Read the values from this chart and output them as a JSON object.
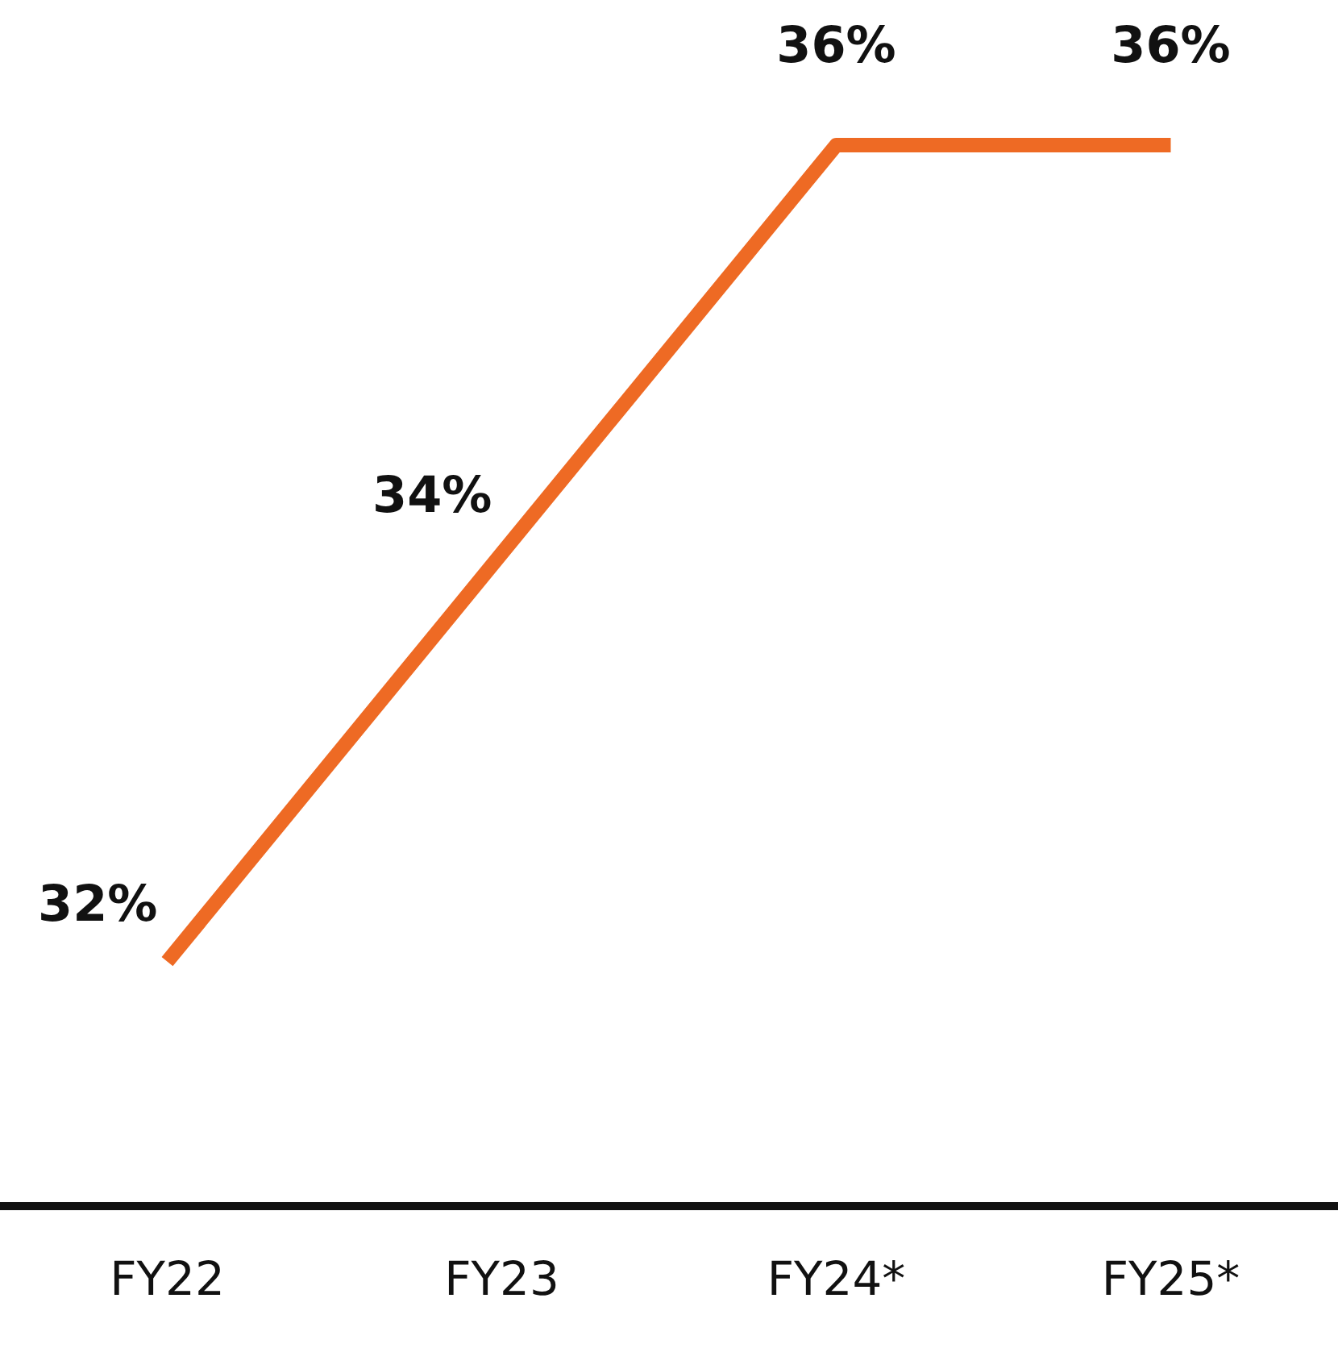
{
  "chart_data": {
    "type": "line",
    "categories": [
      "FY22",
      "FY23",
      "FY24*",
      "FY25*"
    ],
    "series": [
      {
        "color": "#ee6a24",
        "values": [
          32,
          34,
          36,
          36
        ],
        "value_labels": [
          "32%",
          "34%",
          "36%",
          "36%"
        ]
      }
    ],
    "grid": false,
    "legend": false,
    "marker": "none",
    "line_style": "solid",
    "tick_labels": "x"
  }
}
